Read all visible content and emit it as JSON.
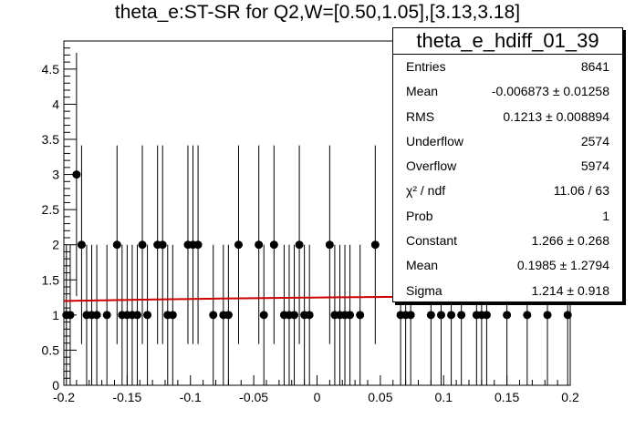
{
  "chart_data": {
    "type": "scatter",
    "title": "theta_e:ST-SR for Q2,W=[0.50,1.05],[3.13,3.18]",
    "xlim": [
      -0.2,
      0.2
    ],
    "ylim": [
      0,
      4.9
    ],
    "x_ticks": [
      "-0.2",
      "-0.15",
      "-0.1",
      "-0.05",
      "0",
      "0.05",
      "0.1",
      "0.15",
      "0.2"
    ],
    "y_ticks": [
      "0",
      "0.5",
      "1",
      "1.5",
      "2",
      "2.5",
      "3",
      "3.5",
      "4",
      "4.5"
    ],
    "grid": false,
    "points": [
      {
        "x": -0.198,
        "y": 1
      },
      {
        "x": -0.195,
        "y": 1
      },
      {
        "x": -0.19,
        "y": 3
      },
      {
        "x": -0.186,
        "y": 2
      },
      {
        "x": -0.182,
        "y": 1
      },
      {
        "x": -0.178,
        "y": 1
      },
      {
        "x": -0.174,
        "y": 1
      },
      {
        "x": -0.166,
        "y": 1
      },
      {
        "x": -0.158,
        "y": 2
      },
      {
        "x": -0.154,
        "y": 1
      },
      {
        "x": -0.15,
        "y": 1
      },
      {
        "x": -0.146,
        "y": 1
      },
      {
        "x": -0.142,
        "y": 1
      },
      {
        "x": -0.138,
        "y": 2
      },
      {
        "x": -0.134,
        "y": 1
      },
      {
        "x": -0.126,
        "y": 2
      },
      {
        "x": -0.122,
        "y": 2
      },
      {
        "x": -0.118,
        "y": 1
      },
      {
        "x": -0.114,
        "y": 1
      },
      {
        "x": -0.102,
        "y": 2
      },
      {
        "x": -0.098,
        "y": 2
      },
      {
        "x": -0.094,
        "y": 2
      },
      {
        "x": -0.082,
        "y": 1
      },
      {
        "x": -0.074,
        "y": 1
      },
      {
        "x": -0.07,
        "y": 1
      },
      {
        "x": -0.062,
        "y": 2
      },
      {
        "x": -0.046,
        "y": 2
      },
      {
        "x": -0.042,
        "y": 1
      },
      {
        "x": -0.034,
        "y": 2
      },
      {
        "x": -0.026,
        "y": 1
      },
      {
        "x": -0.022,
        "y": 1
      },
      {
        "x": -0.018,
        "y": 1
      },
      {
        "x": -0.014,
        "y": 2
      },
      {
        "x": -0.01,
        "y": 1
      },
      {
        "x": -0.006,
        "y": 1
      },
      {
        "x": 0.01,
        "y": 2
      },
      {
        "x": 0.014,
        "y": 1
      },
      {
        "x": 0.018,
        "y": 1
      },
      {
        "x": 0.022,
        "y": 1
      },
      {
        "x": 0.026,
        "y": 1
      },
      {
        "x": 0.034,
        "y": 1
      },
      {
        "x": 0.046,
        "y": 2
      },
      {
        "x": 0.066,
        "y": 1
      },
      {
        "x": 0.07,
        "y": 1
      },
      {
        "x": 0.074,
        "y": 1
      },
      {
        "x": 0.09,
        "y": 1
      },
      {
        "x": 0.098,
        "y": 1
      },
      {
        "x": 0.106,
        "y": 1
      },
      {
        "x": 0.114,
        "y": 1
      },
      {
        "x": 0.126,
        "y": 1
      },
      {
        "x": 0.13,
        "y": 1
      },
      {
        "x": 0.134,
        "y": 1
      },
      {
        "x": 0.15,
        "y": 1
      },
      {
        "x": 0.166,
        "y": 1
      },
      {
        "x": 0.182,
        "y": 1
      },
      {
        "x": 0.198,
        "y": 1
      }
    ],
    "fit": {
      "color": "#cc0000",
      "constant": 1.266,
      "mean": 0.1985,
      "sigma": 1.214,
      "x_range": [
        -0.2,
        0.2
      ]
    },
    "stats_box": {
      "name": "theta_e_hdiff_01_39",
      "rows": [
        {
          "label": "Entries",
          "value": "8641"
        },
        {
          "label": "Mean",
          "value": "-0.006873  ± 0.01258"
        },
        {
          "label": "RMS",
          "value": "0.1213  ± 0.008894"
        },
        {
          "label": "Underflow",
          "value": "2574"
        },
        {
          "label": "Overflow",
          "value": "5974"
        },
        {
          "label": "χ² / ndf",
          "value": "11.06 / 63"
        },
        {
          "label": "Prob",
          "value": "1"
        },
        {
          "label": "Constant",
          "value": "1.266  ± 0.268"
        },
        {
          "label": "Mean",
          "value": "0.1985  ± 1.2794"
        },
        {
          "label": "Sigma",
          "value": "1.214  ± 0.918"
        }
      ]
    }
  }
}
